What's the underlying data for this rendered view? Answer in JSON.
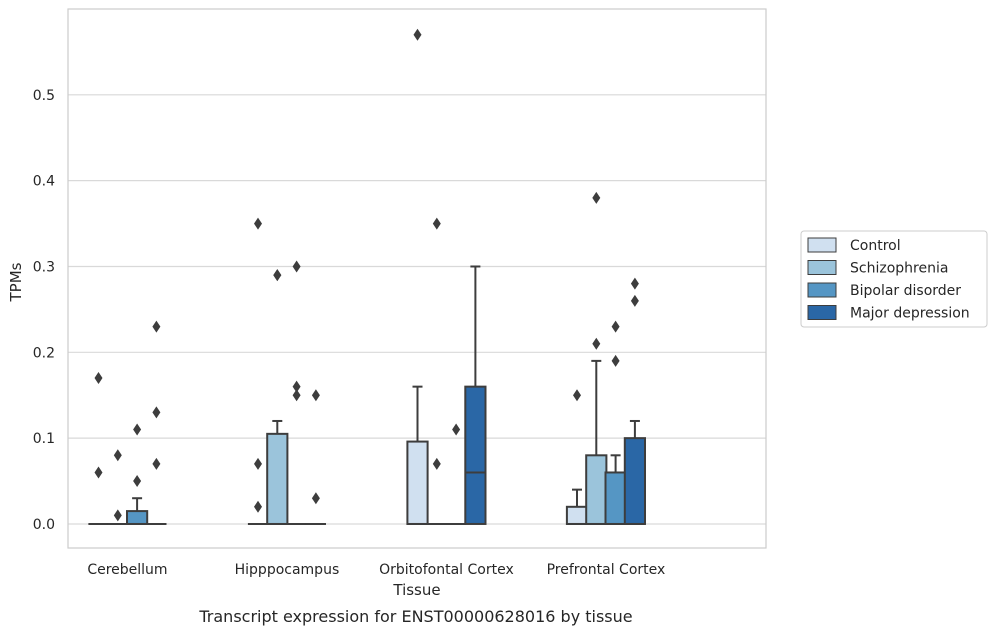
{
  "caption": "Transcript expression for ENST00000628016 by tissue",
  "chart_data": {
    "type": "box",
    "xlabel": "Tissue",
    "ylabel": "TPMs",
    "categories": [
      "Cerebellum",
      "Hipppocampus",
      "Orbitofontal Cortex",
      "Prefrontal Cortex"
    ],
    "ylim": [
      -0.028,
      0.6
    ],
    "yticks": [
      0.0,
      0.1,
      0.2,
      0.3,
      0.4,
      0.5
    ],
    "ytick_labels": [
      "0.0",
      "0.1",
      "0.2",
      "0.3",
      "0.4",
      "0.5"
    ],
    "grid": "horizontal",
    "legend_position": "right",
    "series": [
      {
        "name": "Control",
        "color": "#d0e0f0",
        "boxes": [
          {
            "q1": 0,
            "median": 0,
            "q3": 0,
            "whisker_low": 0,
            "whisker_high": 0,
            "outliers": [
              0.17,
              0.06
            ]
          },
          {
            "q1": 0,
            "median": 0,
            "q3": 0,
            "whisker_low": 0,
            "whisker_high": 0,
            "outliers": [
              0.35,
              0.07,
              0.02
            ]
          },
          {
            "q1": 0,
            "median": 0,
            "q3": 0.096,
            "whisker_low": 0,
            "whisker_high": 0.16,
            "outliers": [
              0.57
            ]
          },
          {
            "q1": 0,
            "median": 0,
            "q3": 0.02,
            "whisker_low": 0,
            "whisker_high": 0.04,
            "outliers": [
              0.15
            ]
          }
        ]
      },
      {
        "name": "Schizophrenia",
        "color": "#9bc4db",
        "boxes": [
          {
            "q1": 0,
            "median": 0,
            "q3": 0,
            "whisker_low": 0,
            "whisker_high": 0,
            "outliers": [
              0.08,
              0.01
            ]
          },
          {
            "q1": 0,
            "median": 0,
            "q3": 0.105,
            "whisker_low": 0,
            "whisker_high": 0.12,
            "outliers": [
              0.29,
              0.29
            ]
          },
          {
            "q1": 0,
            "median": 0,
            "q3": 0,
            "whisker_low": 0,
            "whisker_high": 0,
            "outliers": [
              0.35,
              0.07
            ]
          },
          {
            "q1": 0,
            "median": 0,
            "q3": 0.08,
            "whisker_low": 0,
            "whisker_high": 0.19,
            "outliers": [
              0.38,
              0.21
            ]
          }
        ]
      },
      {
        "name": "Bipolar disorder",
        "color": "#5596c4",
        "boxes": [
          {
            "q1": 0,
            "median": 0,
            "q3": 0.015,
            "whisker_low": 0,
            "whisker_high": 0.03,
            "outliers": [
              0.11,
              0.05
            ]
          },
          {
            "q1": 0,
            "median": 0,
            "q3": 0,
            "whisker_low": 0,
            "whisker_high": 0,
            "outliers": [
              0.3,
              0.16,
              0.15
            ]
          },
          {
            "q1": 0,
            "median": 0,
            "q3": 0,
            "whisker_low": 0,
            "whisker_high": 0,
            "outliers": [
              0.11
            ]
          },
          {
            "q1": 0,
            "median": 0,
            "q3": 0.06,
            "whisker_low": 0,
            "whisker_high": 0.08,
            "outliers": [
              0.23,
              0.19
            ]
          }
        ]
      },
      {
        "name": "Major depression",
        "color": "#2a67a6",
        "boxes": [
          {
            "q1": 0,
            "median": 0,
            "q3": 0,
            "whisker_low": 0,
            "whisker_high": 0,
            "outliers": [
              0.23,
              0.13,
              0.07
            ]
          },
          {
            "q1": 0,
            "median": 0,
            "q3": 0,
            "whisker_low": 0,
            "whisker_high": 0,
            "outliers": [
              0.15,
              0.03
            ]
          },
          {
            "q1": 0,
            "median": 0.06,
            "q3": 0.16,
            "whisker_low": 0,
            "whisker_high": 0.3,
            "outliers": []
          },
          {
            "q1": 0,
            "median": 0,
            "q3": 0.1,
            "whisker_low": 0,
            "whisker_high": 0.12,
            "outliers": [
              0.28,
              0.26
            ]
          }
        ]
      }
    ]
  },
  "colors": {
    "grid": "#d9d9d9",
    "frame": "#cccccc",
    "box_edge": "#3d3d3d"
  }
}
